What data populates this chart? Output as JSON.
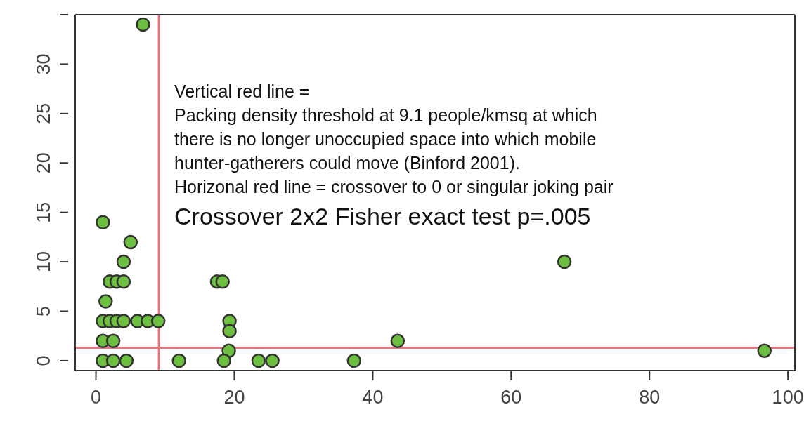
{
  "chart_data": {
    "type": "scatter",
    "x": [
      6.8,
      1,
      5,
      4,
      2,
      3,
      4,
      1.4,
      1,
      2,
      3,
      4,
      6,
      7.5,
      9,
      1,
      2.5,
      1,
      2.5,
      4.4,
      12,
      17.5,
      18.3,
      19.3,
      19.3,
      19.2,
      18.5,
      23.5,
      25.5,
      37.3,
      43.6,
      67.7,
      96.6
    ],
    "values": [
      34,
      14,
      12,
      10,
      8,
      8,
      8,
      6,
      4,
      4,
      4,
      4,
      4,
      4,
      4,
      2,
      2,
      0,
      0,
      0,
      0,
      8,
      8,
      4,
      3,
      1,
      0,
      0,
      0,
      0,
      2,
      10,
      1
    ],
    "color": "#6cbf3f",
    "marker": "circle",
    "xlim": [
      -3,
      101
    ],
    "ylim": [
      -1,
      35
    ],
    "xticks": [
      0,
      20,
      40,
      60,
      80,
      100
    ],
    "yticks": [
      0,
      5,
      10,
      15,
      20,
      25,
      30,
      {
        "value": 35,
        "label": null
      }
    ],
    "grid": false,
    "ref_lines": [
      {
        "axis": "x",
        "value": 9.1,
        "color": "#e8707a"
      },
      {
        "axis": "y",
        "value": 1.3,
        "color": "#e8707a"
      }
    ],
    "annotations": [
      "Vertical red line =",
      "Packing density threshold at 9.1 people/kmsq at which",
      "there is no longer unoccupied space into which mobile",
      "hunter-gatherers could move (Binford 2001).",
      "Horizonal red line = crossover to 0 or singular joking pair",
      "Crossover 2x2 Fisher exact test p=.005"
    ]
  }
}
